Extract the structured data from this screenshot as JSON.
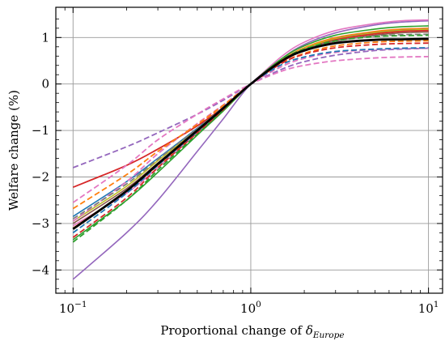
{
  "chart_data": {
    "type": "line",
    "xlabel_main": "Proportional change of ",
    "xlabel_symbol": "δ",
    "xlabel_subscript": "Europe",
    "ylabel": "Welfare change (%)",
    "x_scale": "log",
    "xlim": [
      0.08,
      12
    ],
    "ylim": [
      -4.5,
      1.65
    ],
    "grid": true,
    "x_ticks": [
      {
        "value": 0.1,
        "base": "10",
        "exp": "−1"
      },
      {
        "value": 1,
        "base": "10",
        "exp": "0"
      },
      {
        "value": 10,
        "base": "10",
        "exp": "1"
      }
    ],
    "y_ticks": [
      {
        "value": 1,
        "label": "1"
      },
      {
        "value": 0,
        "label": "0"
      },
      {
        "value": -1,
        "label": "−1"
      },
      {
        "value": -2,
        "label": "−2"
      },
      {
        "value": -3,
        "label": "−3"
      },
      {
        "value": -4,
        "label": "−4"
      }
    ],
    "x": [
      0.1,
      0.2,
      0.3,
      0.5,
      0.7,
      1,
      1.5,
      2,
      3,
      5,
      7,
      10
    ],
    "series": [
      {
        "color": "#9467bd",
        "dash": "solid",
        "width": 1.6,
        "values": [
          -4.2,
          -3.2,
          -2.5,
          -1.45,
          -0.75,
          0,
          0.55,
          0.85,
          1.1,
          1.27,
          1.33,
          1.36
        ]
      },
      {
        "color": "#e377c2",
        "dash": "solid",
        "width": 1.6,
        "values": [
          -3.05,
          -2.35,
          -1.8,
          -1.05,
          -0.55,
          0,
          0.6,
          0.9,
          1.15,
          1.3,
          1.36,
          1.38
        ]
      },
      {
        "color": "#1f77b4",
        "dash": "solid",
        "width": 1.6,
        "values": [
          -2.85,
          -2.1,
          -1.6,
          -0.95,
          -0.5,
          0,
          0.5,
          0.75,
          0.98,
          1.12,
          1.17,
          1.2
        ]
      },
      {
        "color": "#2ca02c",
        "dash": "solid",
        "width": 1.6,
        "values": [
          -3.35,
          -2.5,
          -1.9,
          -1.1,
          -0.58,
          0,
          0.55,
          0.82,
          1.05,
          1.18,
          1.23,
          1.25
        ]
      },
      {
        "color": "#ff7f0e",
        "dash": "solid",
        "width": 1.6,
        "values": [
          -3.1,
          -2.3,
          -1.75,
          -1.02,
          -0.53,
          0,
          0.52,
          0.78,
          1.0,
          1.13,
          1.18,
          1.2
        ]
      },
      {
        "color": "#bcbd22",
        "dash": "solid",
        "width": 1.6,
        "values": [
          -2.95,
          -2.2,
          -1.65,
          -0.98,
          -0.5,
          0,
          0.5,
          0.76,
          0.97,
          1.1,
          1.15,
          1.17
        ]
      },
      {
        "color": "#8c564b",
        "dash": "solid",
        "width": 1.6,
        "values": [
          -3.0,
          -2.25,
          -1.7,
          -1.0,
          -0.52,
          0,
          0.48,
          0.72,
          0.92,
          1.05,
          1.1,
          1.12
        ]
      },
      {
        "color": "#d62728",
        "dash": "solid",
        "width": 1.8,
        "values": [
          -2.22,
          -1.75,
          -1.4,
          -0.9,
          -0.5,
          0,
          0.48,
          0.73,
          0.95,
          1.08,
          1.13,
          1.15
        ]
      },
      {
        "color": "#9467bd",
        "dash": "dashed",
        "width": 1.8,
        "values": [
          -1.8,
          -1.35,
          -1.05,
          -0.65,
          -0.35,
          0,
          0.32,
          0.48,
          0.62,
          0.72,
          0.75,
          0.77
        ]
      },
      {
        "color": "#e377c2",
        "dash": "dashed",
        "width": 1.8,
        "values": [
          -2.55,
          -1.75,
          -1.2,
          -0.65,
          -0.32,
          0,
          0.28,
          0.4,
          0.5,
          0.56,
          0.58,
          0.59
        ]
      },
      {
        "color": "#e377c2",
        "dash": "dashed",
        "width": 1.8,
        "values": [
          -2.95,
          -2.1,
          -1.5,
          -0.85,
          -0.45,
          0,
          0.38,
          0.55,
          0.68,
          0.74,
          0.76,
          0.77
        ]
      },
      {
        "color": "#ff7f0e",
        "dash": "dashed",
        "width": 1.8,
        "values": [
          -2.68,
          -1.95,
          -1.45,
          -0.87,
          -0.46,
          0,
          0.45,
          0.66,
          0.82,
          0.9,
          0.92,
          0.93
        ]
      },
      {
        "color": "#7f7f7f",
        "dash": "dashed",
        "width": 1.8,
        "values": [
          -2.9,
          -2.15,
          -1.62,
          -0.96,
          -0.5,
          0,
          0.5,
          0.74,
          0.93,
          1.03,
          1.06,
          1.07
        ]
      },
      {
        "color": "#2ca02c",
        "dash": "dashed",
        "width": 1.8,
        "values": [
          -3.4,
          -2.5,
          -1.85,
          -1.08,
          -0.56,
          0,
          0.52,
          0.75,
          0.93,
          1.02,
          1.04,
          1.05
        ]
      },
      {
        "color": "#d62728",
        "dash": "dashed",
        "width": 1.8,
        "values": [
          -3.3,
          -2.45,
          -1.8,
          -1.05,
          -0.55,
          0,
          0.45,
          0.64,
          0.78,
          0.85,
          0.87,
          0.88
        ]
      },
      {
        "color": "#1f77b4",
        "dash": "dashed",
        "width": 1.8,
        "values": [
          -3.2,
          -2.35,
          -1.75,
          -1.02,
          -0.53,
          0,
          0.42,
          0.58,
          0.7,
          0.75,
          0.77,
          0.78
        ]
      },
      {
        "color": "#000000",
        "dash": "solid",
        "width": 2.8,
        "values": [
          -3.12,
          -2.3,
          -1.72,
          -1.0,
          -0.52,
          0,
          0.5,
          0.72,
          0.88,
          0.95,
          0.96,
          0.97
        ]
      }
    ]
  }
}
